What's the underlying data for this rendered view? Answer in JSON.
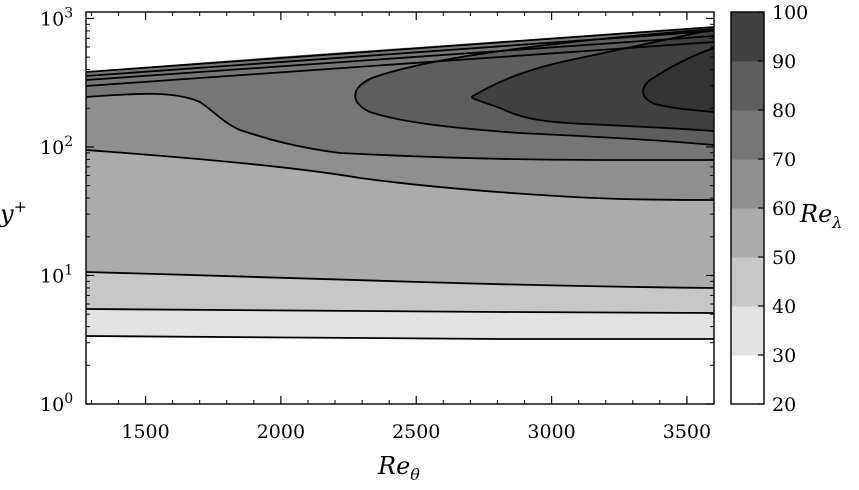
{
  "chart_data": {
    "type": "contour",
    "xlabel_main": "Re",
    "xlabel_sub": "θ",
    "ylabel_main": "y",
    "ylabel_sup": "+",
    "colorbar_label_main": "Re",
    "colorbar_label_sub": "λ",
    "xlim": [
      1280,
      3600
    ],
    "ylim_log10": [
      0,
      3.05
    ],
    "y_scale": "log",
    "x_ticks": [
      "1500",
      "2000",
      "2500",
      "3000",
      "3500"
    ],
    "x_tick_values": [
      1500,
      2000,
      2500,
      3000,
      3500
    ],
    "y_ticks": [
      {
        "base": "10",
        "exp": "0",
        "value_log10": 0
      },
      {
        "base": "10",
        "exp": "1",
        "value_log10": 1
      },
      {
        "base": "10",
        "exp": "2",
        "value_log10": 2
      },
      {
        "base": "10",
        "exp": "3",
        "value_log10": 3
      }
    ],
    "colorbar_levels": [
      "20",
      "30",
      "40",
      "50",
      "60",
      "70",
      "80",
      "90",
      "100"
    ],
    "colorbar_fills": [
      "#ffffff",
      "#e3e3e3",
      "#c7c7c7",
      "#ababab",
      "#8f8f8f",
      "#767676",
      "#5e5e5e",
      "#404040"
    ],
    "grid": false,
    "contour_lines": [
      {
        "level": 30,
        "points": [
          [
            1280,
            0.54
          ],
          [
            2000,
            0.54
          ],
          [
            3000,
            0.53
          ],
          [
            3600,
            0.53
          ]
        ]
      },
      {
        "level": 40,
        "points": [
          [
            1280,
            0.78
          ],
          [
            2000,
            0.77
          ],
          [
            3000,
            0.76
          ],
          [
            3600,
            0.76
          ]
        ]
      },
      {
        "level": 50,
        "points": [
          [
            1280,
            1.06
          ],
          [
            2000,
            1.03
          ],
          [
            3000,
            0.98
          ],
          [
            3600,
            0.96
          ]
        ]
      },
      {
        "level": 60,
        "points": [
          [
            1280,
            2.06
          ],
          [
            1700,
            1.98
          ],
          [
            2200,
            1.88
          ],
          [
            2800,
            1.8
          ],
          [
            3300,
            1.7
          ],
          [
            3600,
            1.68
          ]
        ]
      },
      {
        "level": 70,
        "points": [
          [
            1280,
            2.5
          ],
          [
            1700,
            2.44
          ],
          [
            2000,
            2.25
          ],
          [
            2300,
            2.1
          ],
          [
            2700,
            2.05
          ],
          [
            3200,
            2.0
          ],
          [
            3600,
            1.98
          ]
        ]
      },
      {
        "level": 80,
        "points": [
          [
            1720,
            2.38
          ],
          [
            2000,
            2.54
          ],
          [
            2500,
            2.64
          ],
          [
            3000,
            2.74
          ],
          [
            3600,
            2.86
          ]
        ]
      },
      {
        "level": 90,
        "points": [
          [
            2280,
            2.4
          ],
          [
            2600,
            2.62
          ],
          [
            3000,
            2.77
          ],
          [
            3600,
            2.9
          ]
        ]
      },
      {
        "level": 100,
        "points": [
          [
            1280,
            2.68
          ],
          [
            2000,
            2.78
          ],
          [
            3000,
            2.92
          ],
          [
            3600,
            3.01
          ]
        ]
      }
    ]
  }
}
